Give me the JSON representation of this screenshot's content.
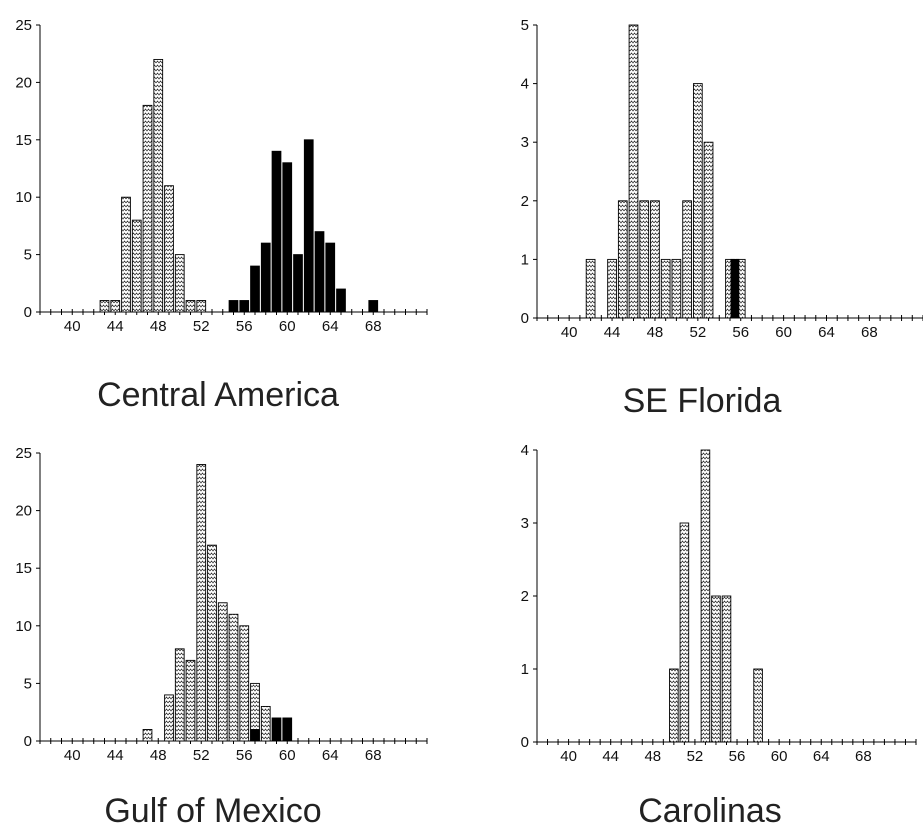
{
  "chart_data": [
    {
      "id": "central-america",
      "type": "bar",
      "title": "Central America",
      "xlabel": "",
      "ylabel": "",
      "xlim": [
        37,
        73
      ],
      "ylim": [
        0,
        25
      ],
      "xticks": [
        40,
        44,
        48,
        52,
        56,
        60,
        64,
        68
      ],
      "yticks": [
        0,
        5,
        10,
        15,
        20,
        25
      ],
      "grid": false,
      "series": [
        {
          "pattern": "hatched",
          "x": [
            43,
            44,
            45,
            46,
            47,
            48,
            49,
            50,
            51,
            52
          ],
          "values": [
            1,
            1,
            10,
            8,
            18,
            22,
            11,
            5,
            1,
            1
          ]
        },
        {
          "pattern": "solid",
          "x": [
            55,
            56,
            57,
            58,
            59,
            60,
            61,
            62,
            63,
            64,
            65,
            68
          ],
          "values": [
            1,
            1,
            4,
            6,
            14,
            13,
            5,
            15,
            7,
            6,
            2,
            1
          ]
        }
      ]
    },
    {
      "id": "se-florida",
      "type": "bar",
      "title": "SE Florida",
      "xlabel": "",
      "ylabel": "",
      "xlim": [
        37,
        73
      ],
      "ylim": [
        0,
        5
      ],
      "xticks": [
        40,
        44,
        48,
        52,
        56,
        60,
        64,
        68
      ],
      "yticks": [
        0,
        1,
        2,
        3,
        4,
        5
      ],
      "grid": false,
      "series": [
        {
          "pattern": "hatched",
          "x": [
            42,
            44,
            45,
            46,
            47,
            48,
            49,
            50,
            51,
            52,
            53,
            55,
            56
          ],
          "values": [
            1,
            1,
            2,
            5,
            2,
            2,
            1,
            1,
            2,
            4,
            3,
            1,
            1
          ]
        },
        {
          "pattern": "solid",
          "x": [
            55.5
          ],
          "values": [
            1
          ]
        }
      ]
    },
    {
      "id": "gulf-of-mexico",
      "type": "bar",
      "title": "Gulf of Mexico",
      "xlabel": "",
      "ylabel": "",
      "xlim": [
        37,
        73
      ],
      "ylim": [
        0,
        25
      ],
      "xticks": [
        40,
        44,
        48,
        52,
        56,
        60,
        64,
        68
      ],
      "yticks": [
        0,
        5,
        10,
        15,
        20,
        25
      ],
      "grid": false,
      "series": [
        {
          "pattern": "hatched",
          "x": [
            47,
            49,
            50,
            51,
            52,
            53,
            54,
            55,
            56,
            57,
            58
          ],
          "values": [
            1,
            4,
            8,
            7,
            24,
            17,
            12,
            11,
            10,
            5,
            3
          ]
        },
        {
          "pattern": "solid",
          "x": [
            57,
            59,
            60
          ],
          "values": [
            1,
            2,
            2
          ]
        }
      ]
    },
    {
      "id": "carolinas",
      "type": "bar",
      "title": "Carolinas",
      "xlabel": "",
      "ylabel": "",
      "xlim": [
        37,
        73
      ],
      "ylim": [
        0,
        4
      ],
      "xticks": [
        40,
        44,
        48,
        52,
        56,
        60,
        64,
        68
      ],
      "yticks": [
        0,
        1,
        2,
        3,
        4
      ],
      "grid": false,
      "series": [
        {
          "pattern": "hatched",
          "x": [
            50,
            51,
            53,
            54,
            55,
            58
          ],
          "values": [
            1,
            3,
            4,
            2,
            2,
            1
          ]
        }
      ]
    }
  ]
}
